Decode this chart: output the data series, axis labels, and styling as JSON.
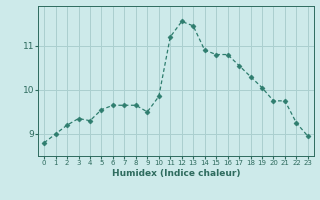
{
  "x": [
    0,
    1,
    2,
    3,
    4,
    5,
    6,
    7,
    8,
    9,
    10,
    11,
    12,
    13,
    14,
    15,
    16,
    17,
    18,
    19,
    20,
    21,
    22,
    23
  ],
  "y": [
    8.8,
    9.0,
    9.2,
    9.35,
    9.3,
    9.55,
    9.65,
    9.65,
    9.65,
    9.5,
    9.85,
    11.2,
    11.55,
    11.45,
    10.9,
    10.8,
    10.8,
    10.55,
    10.3,
    10.05,
    9.75,
    9.75,
    9.25,
    8.95
  ],
  "line_color": "#2e7d6e",
  "marker": "D",
  "marker_size": 2.5,
  "bg_color": "#cdeaea",
  "grid_color": "#aacfcf",
  "xlabel": "Humidex (Indice chaleur)",
  "ylabel": "",
  "yticks": [
    9,
    10,
    11
  ],
  "ylim": [
    8.5,
    11.9
  ],
  "xlim": [
    -0.5,
    23.5
  ],
  "xticks": [
    0,
    1,
    2,
    3,
    4,
    5,
    6,
    7,
    8,
    9,
    10,
    11,
    12,
    13,
    14,
    15,
    16,
    17,
    18,
    19,
    20,
    21,
    22,
    23
  ],
  "axis_color": "#2e6b5e",
  "label_color": "#2e6b5e",
  "tick_color": "#2e6b5e"
}
